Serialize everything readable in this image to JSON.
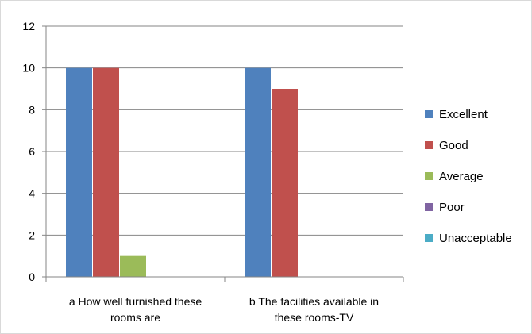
{
  "chart_data": {
    "type": "bar",
    "title": "",
    "xlabel": "",
    "ylabel": "",
    "ylim": [
      0,
      12
    ],
    "yticks": [
      0,
      2,
      4,
      6,
      8,
      10,
      12
    ],
    "grid": true,
    "legend_position": "right",
    "categories": [
      [
        "a How well furnished these",
        "rooms are"
      ],
      [
        "b The facilities available in",
        "these rooms-TV"
      ]
    ],
    "series": [
      {
        "name": "Excellent",
        "color": "#4F81BD",
        "values": [
          10,
          10
        ]
      },
      {
        "name": "Good",
        "color": "#C0504D",
        "values": [
          10,
          9
        ]
      },
      {
        "name": "Average",
        "color": "#9BBB59",
        "values": [
          1,
          0
        ]
      },
      {
        "name": "Poor",
        "color": "#8064A2",
        "values": [
          0,
          0
        ]
      },
      {
        "name": "Unacceptable",
        "color": "#4BACC6",
        "values": [
          0,
          0
        ]
      }
    ]
  }
}
